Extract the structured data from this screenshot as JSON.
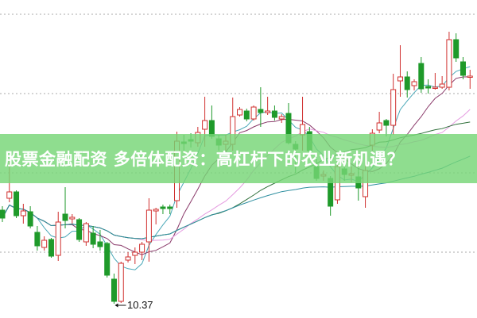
{
  "banner": {
    "title": "股票金融配资 多倍体配资：高杠杆下的农业新机遇？"
  },
  "chart_data": {
    "type": "candlestick",
    "title": "",
    "xlabel": "",
    "ylabel": "",
    "ylim": [
      10,
      18
    ],
    "grid": true,
    "annotations": [
      {
        "text": "10.37",
        "target": "lowest low"
      }
    ],
    "colors": {
      "up": "#d0302f",
      "down": "#1f9a2a",
      "ma": [
        "#4aa8b8",
        "#8a3a6a",
        "#e59ae0",
        "#2f6f3a",
        "#2f8fa0"
      ]
    },
    "candles": [
      [
        12.73,
        12.53,
        12.83,
        12.43
      ],
      [
        13.03,
        13.19,
        14.03,
        12.93
      ],
      [
        13.19,
        12.59,
        13.23,
        12.53
      ],
      [
        12.59,
        12.71,
        12.89,
        12.39
      ],
      [
        12.69,
        12.33,
        12.83,
        12.27
      ],
      [
        12.17,
        11.83,
        12.33,
        11.71
      ],
      [
        11.79,
        11.97,
        12.07,
        11.71
      ],
      [
        11.99,
        11.57,
        12.03,
        11.53
      ],
      [
        11.59,
        12.43,
        12.69,
        11.45
      ],
      [
        12.63,
        12.47,
        13.31,
        12.27
      ],
      [
        12.51,
        12.55,
        12.63,
        12.39
      ],
      [
        12.49,
        11.99,
        12.53,
        11.93
      ],
      [
        11.93,
        12.39,
        12.43,
        11.83
      ],
      [
        12.15,
        11.87,
        12.33,
        11.77
      ],
      [
        11.93,
        11.81,
        12.23,
        11.71
      ],
      [
        11.89,
        11.09,
        11.93,
        11.03
      ],
      [
        10.99,
        10.43,
        11.13,
        10.37
      ],
      [
        10.43,
        11.39,
        11.43,
        10.39
      ],
      [
        11.47,
        11.55,
        11.67,
        11.41
      ],
      [
        11.59,
        11.67,
        11.79,
        11.37
      ],
      [
        11.67,
        11.87,
        11.93,
        11.47
      ],
      [
        11.93,
        12.73,
        13.03,
        11.43
      ],
      [
        12.71,
        12.75,
        12.79,
        12.37
      ],
      [
        12.81,
        12.77,
        12.87,
        12.63
      ],
      [
        12.81,
        12.77,
        12.87,
        12.63
      ],
      [
        12.97,
        14.47,
        14.71,
        12.79
      ],
      [
        14.45,
        14.41,
        14.63,
        14.23
      ],
      [
        14.51,
        14.47,
        14.67,
        14.31
      ],
      [
        14.43,
        14.69,
        14.83,
        14.33
      ],
      [
        14.77,
        14.99,
        15.59,
        14.33
      ],
      [
        14.99,
        14.59,
        15.37,
        14.53
      ],
      [
        14.53,
        14.37,
        14.63,
        14.23
      ],
      [
        14.39,
        14.47,
        14.63,
        14.23
      ],
      [
        14.39,
        15.09,
        15.57,
        14.23
      ],
      [
        15.13,
        15.27,
        15.33,
        15.09
      ],
      [
        15.23,
        15.03,
        15.29,
        14.97
      ],
      [
        15.03,
        15.33,
        15.37,
        14.99
      ],
      [
        15.27,
        15.19,
        15.83,
        14.83
      ],
      [
        15.19,
        15.23,
        15.59,
        15.13
      ],
      [
        15.23,
        15.07,
        15.37,
        14.99
      ],
      [
        15.03,
        15.09,
        15.15,
        14.93
      ],
      [
        15.17,
        14.43,
        15.43,
        14.39
      ],
      [
        14.39,
        14.27,
        14.47,
        13.67
      ],
      [
        14.63,
        14.89,
        15.59,
        14.23
      ],
      [
        14.71,
        14.23,
        14.83,
        14.03
      ],
      [
        13.83,
        13.53,
        14.03,
        13.47
      ],
      [
        13.59,
        13.63,
        13.73,
        13.47
      ],
      [
        13.53,
        12.83,
        13.59,
        12.59
      ],
      [
        12.99,
        13.83,
        13.93,
        12.89
      ],
      [
        13.77,
        13.63,
        13.93,
        13.47
      ],
      [
        13.61,
        13.65,
        13.83,
        13.43
      ],
      [
        13.57,
        13.29,
        13.79,
        12.97
      ],
      [
        13.07,
        13.73,
        13.93,
        12.79
      ],
      [
        14.37,
        14.67,
        14.77,
        14.23
      ],
      [
        14.75,
        14.93,
        15.21,
        14.67
      ],
      [
        14.99,
        14.87,
        15.03,
        14.59
      ],
      [
        14.87,
        15.77,
        16.17,
        14.63
      ],
      [
        15.99,
        16.09,
        16.89,
        15.59
      ],
      [
        16.09,
        15.77,
        16.23,
        15.57
      ],
      [
        15.87,
        15.97,
        16.03,
        15.75
      ],
      [
        16.43,
        15.79,
        16.59,
        15.69
      ],
      [
        15.85,
        15.81,
        16.03,
        15.67
      ],
      [
        15.81,
        15.83,
        16.19,
        15.77
      ],
      [
        15.83,
        15.91,
        16.11,
        15.79
      ],
      [
        15.83,
        17.03,
        17.23,
        15.75
      ],
      [
        17.03,
        16.57,
        17.19,
        16.47
      ],
      [
        16.47,
        16.13,
        16.59,
        16.03
      ],
      [
        16.09,
        16.11,
        16.27,
        15.79
      ]
    ],
    "candle_fields": [
      "open",
      "close",
      "high",
      "low"
    ]
  }
}
